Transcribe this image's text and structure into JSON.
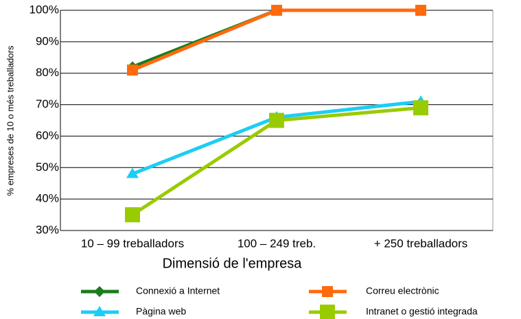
{
  "chart_data": {
    "type": "line",
    "x_label": "Dimensió de l'empresa",
    "y_label": "% empreses de 10 o més treballadors",
    "categories": [
      "10 – 99 treballadors",
      "100 – 249 treb.",
      "+ 250 treballadors"
    ],
    "ylim": [
      30,
      100
    ],
    "yticks": [
      {
        "value": 30,
        "label": "30%"
      },
      {
        "value": 40,
        "label": "40%"
      },
      {
        "value": 50,
        "label": "50%"
      },
      {
        "value": 60,
        "label": "60%"
      },
      {
        "value": 70,
        "label": "70%"
      },
      {
        "value": 80,
        "label": "80%"
      },
      {
        "value": 90,
        "label": "90%"
      },
      {
        "value": 100,
        "label": "100%"
      }
    ],
    "grid": true,
    "series": [
      {
        "name": "Connexió a Internet",
        "color": "#1b7d1b",
        "marker": "diamond",
        "values": [
          82,
          100,
          100
        ]
      },
      {
        "name": "Correu electrònic",
        "color": "#ff6a0d",
        "marker": "square",
        "values": [
          81,
          100,
          100
        ]
      },
      {
        "name": "Pàgina web",
        "color": "#1ccdf5",
        "marker": "triangle",
        "values": [
          48,
          66,
          71
        ]
      },
      {
        "name": "Intranet o gestió integrada",
        "color": "#99cc00",
        "marker": "bigsquare",
        "values": [
          35,
          65,
          69
        ]
      }
    ]
  }
}
